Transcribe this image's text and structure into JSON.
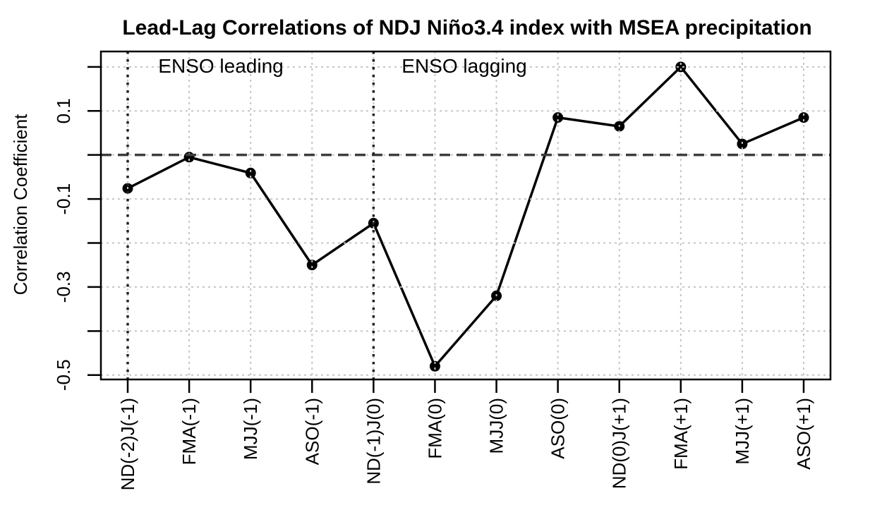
{
  "chart_data": {
    "type": "line",
    "title": "Lead-Lag Correlations of NDJ Niño3.4 index with MSEA precipitation",
    "ylabel": "Correlation Coefficient",
    "xlabel": "",
    "categories": [
      "ND(-2)J(-1)",
      "FMA(-1)",
      "MJJ(-1)",
      "ASO(-1)",
      "ND(-1)J(0)",
      "FMA(0)",
      "MJJ(0)",
      "ASO(0)",
      "ND(0)J(+1)",
      "FMA(+1)",
      "MJJ(+1)",
      "ASO(+1)"
    ],
    "values": [
      -0.076,
      -0.005,
      -0.041,
      -0.25,
      -0.155,
      -0.48,
      -0.32,
      0.085,
      0.065,
      0.2,
      0.025,
      0.085
    ],
    "ylim": [
      -0.51,
      0.235
    ],
    "yticks": [
      0.2,
      0.1,
      0.0,
      -0.1,
      -0.2,
      -0.3,
      -0.4,
      -0.5
    ],
    "ytick_labels": [
      "",
      "0.1",
      "",
      "-0.1",
      "",
      "-0.3",
      "",
      "-0.5"
    ],
    "grid": true,
    "legend": "none",
    "marker": "filled-circle",
    "line_style": "solid",
    "reference_lines": {
      "horizontal_dashed_y": 0,
      "vertical_dotted_categories": [
        "ND(-2)J(-1)",
        "ND(-1)J(0)"
      ]
    },
    "annotations": [
      {
        "text": "ENSO leading"
      },
      {
        "text": "ENSO lagging"
      }
    ],
    "colors": {
      "line": "#000000",
      "marker": "#000000",
      "frame": "#000000",
      "grid": "#c5c5c5",
      "zero_line": "#3d3d3d",
      "boundary_line": "#222222",
      "text": "#000000",
      "background": "#ffffff"
    }
  }
}
